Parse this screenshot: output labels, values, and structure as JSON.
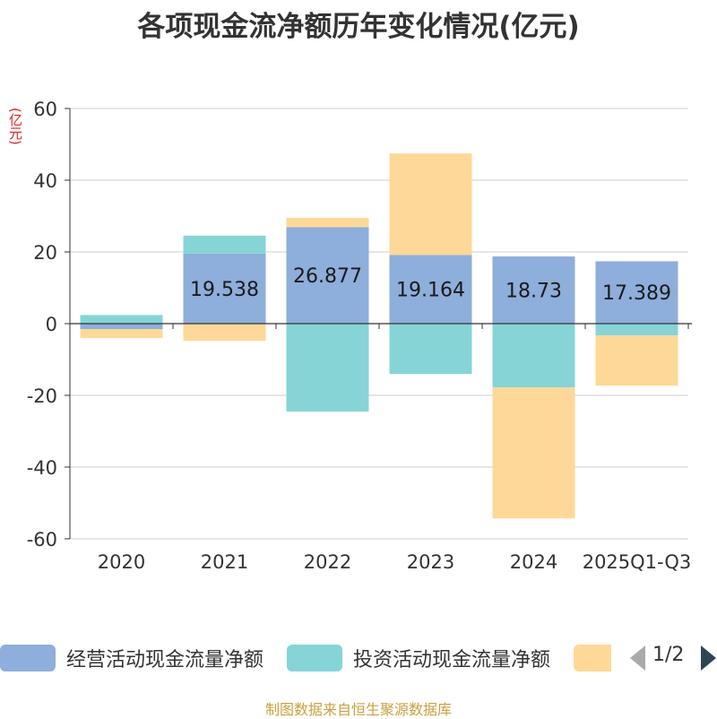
{
  "title": "各项现金流净额历年变化情况(亿元)",
  "unit_label": "(亿元)",
  "source": "制图数据来自恒生聚源数据库",
  "legend": {
    "items": [
      {
        "label": "经营活动现金流量净额",
        "color": "#8eaedb"
      },
      {
        "label": "投资活动现金流量净额",
        "color": "#86d4d6"
      },
      {
        "label": "",
        "color": "#fed898"
      }
    ],
    "pager": "1/2"
  },
  "chart_data": {
    "type": "bar",
    "stacked": true,
    "categories": [
      "2020",
      "2021",
      "2022",
      "2023",
      "2024",
      "2025Q1-Q3"
    ],
    "ylim": [
      -60,
      60
    ],
    "yticks": [
      60,
      40,
      20,
      0,
      -20,
      -40,
      -60
    ],
    "series": [
      {
        "name": "经营活动现金流量净额",
        "color": "#8eaedb",
        "values": [
          -1.5,
          19.538,
          26.877,
          19.164,
          18.73,
          17.389
        ],
        "labels": [
          "",
          "19.538",
          "26.877",
          "19.164",
          "18.73",
          "17.389"
        ]
      },
      {
        "name": "投资活动现金流量净额",
        "color": "#86d4d6",
        "values": [
          2.4,
          5.0,
          -24.5,
          -14.0,
          -17.8,
          -3.3
        ]
      },
      {
        "name": "",
        "color": "#fed898",
        "values": [
          -2.5,
          -4.8,
          2.6,
          28.3,
          -36.5,
          -14.0
        ]
      }
    ],
    "grid": true,
    "legend_position": "bottom"
  }
}
